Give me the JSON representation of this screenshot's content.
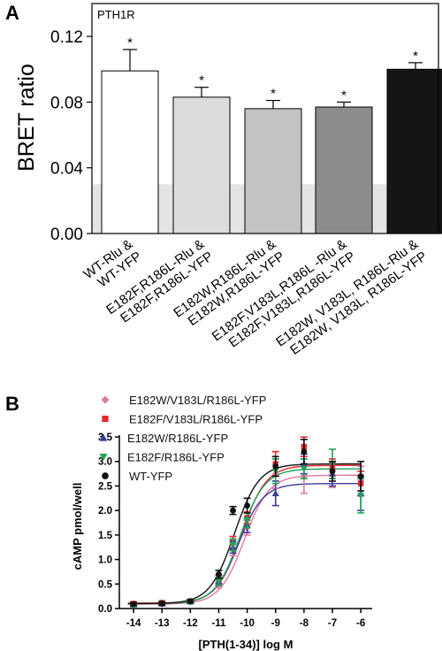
{
  "chart_data": [
    {
      "type": "bar",
      "panel_label": "A",
      "inset_label": "PTH1R",
      "ylabel": "BRET ratio",
      "xlabel": "",
      "ylim": [
        0,
        0.14
      ],
      "yticks": [
        "0.00",
        "0.04",
        "0.08",
        "0.12"
      ],
      "ytick_values": [
        0,
        0.04,
        0.08,
        0.12
      ],
      "background_band": [
        0,
        0.03
      ],
      "categories": [
        "WT-Rlu & WT-YFP",
        "E182F,R186L-Rlu & E182F,R186L-YFP",
        "E182W,R186L-Rlu & E182W,R186L-YFP",
        "E182F,V183L,R186L -Rlu & E182F,V183L,R186L-YFP",
        "E182W, V183L, R186L-Rlu & E182W, V183L, R186L-YFP"
      ],
      "tick_labels": [
        [
          "WT-Rlu &",
          "WT-YFP"
        ],
        [
          "E182F,R186L-Rlu &",
          "E182F,R186L-YFP"
        ],
        [
          "E182W,R186L-Rlu &",
          "E182W,R186L-YFP"
        ],
        [
          "E182F,V183L,R186L -Rlu &",
          "E182F,V183L,R186L-YFP"
        ],
        [
          "E182W, V183L, R186L-Rlu &",
          "E182W, V183L, R186L-YFP"
        ]
      ],
      "values": [
        0.099,
        0.083,
        0.076,
        0.077,
        0.1
      ],
      "errors": [
        0.013,
        0.006,
        0.005,
        0.003,
        0.004
      ],
      "significance": [
        "*",
        "*",
        "*",
        "*",
        "*"
      ],
      "colors": [
        "#ffffff",
        "#dcdcdc",
        "#c3c3c3",
        "#8c8c8c",
        "#151515"
      ],
      "grid": false
    },
    {
      "type": "scatter",
      "panel_label": "B",
      "xlabel": "[PTH(1-34)] log M",
      "ylabel": "cAMP pmol/well",
      "xlim": [
        -14.5,
        -5.6
      ],
      "ylim": [
        0,
        3.5
      ],
      "xticks": [
        "-14",
        "-13",
        "-12",
        "-11",
        "-10",
        "-9",
        "-8",
        "-7",
        "-6"
      ],
      "xtick_values": [
        -14,
        -13,
        -12,
        -11,
        -10,
        -9,
        -8,
        -7,
        -6
      ],
      "yticks": [
        "0.0",
        "0.5",
        "1.0",
        "1.5",
        "2.0",
        "2.5",
        "3.0",
        "3.5"
      ],
      "ytick_values": [
        0,
        0.5,
        1.0,
        1.5,
        2.0,
        2.5,
        3.0,
        3.5
      ],
      "legend_position": "top-left",
      "grid": false,
      "x": [
        -14,
        -13,
        -12,
        -11,
        -10.5,
        -10,
        -9,
        -8,
        -7,
        -6
      ],
      "series": [
        {
          "name": "E182W/V183L/R186L-YFP",
          "marker": "diamond",
          "color": "#e07aa0",
          "values": [
            0.08,
            0.1,
            0.14,
            0.5,
            1.2,
            1.65,
            2.75,
            2.7,
            2.72,
            2.6
          ],
          "errors": [
            0.03,
            0.03,
            0.03,
            0.08,
            0.12,
            0.15,
            0.3,
            0.35,
            0.25,
            0.3
          ]
        },
        {
          "name": "E182F/V183L/R186L-YFP",
          "marker": "square",
          "color": "#e8262c",
          "values": [
            0.1,
            0.12,
            0.15,
            0.6,
            1.35,
            1.85,
            2.95,
            3.3,
            2.85,
            2.55
          ],
          "errors": [
            0.03,
            0.03,
            0.03,
            0.08,
            0.12,
            0.12,
            0.25,
            0.2,
            0.2,
            0.25
          ]
        },
        {
          "name": "E182W/R186L-YFP",
          "marker": "triangle-up",
          "color": "#3a3d9c",
          "values": [
            0.08,
            0.1,
            0.14,
            0.55,
            1.25,
            1.7,
            2.35,
            2.95,
            2.75,
            2.35
          ],
          "errors": [
            0.03,
            0.03,
            0.03,
            0.08,
            0.12,
            0.15,
            0.25,
            0.2,
            0.25,
            0.35
          ]
        },
        {
          "name": "E182F/R186L-YFP",
          "marker": "triangle-down",
          "color": "#1ea35a",
          "values": [
            0.07,
            0.1,
            0.13,
            0.55,
            1.3,
            1.8,
            2.8,
            2.85,
            2.95,
            2.3
          ],
          "errors": [
            0.03,
            0.03,
            0.03,
            0.08,
            0.12,
            0.15,
            0.25,
            0.2,
            0.3,
            0.35
          ]
        },
        {
          "name": "WT-YFP",
          "marker": "circle",
          "color": "#111111",
          "values": [
            0.09,
            0.1,
            0.15,
            0.7,
            2.0,
            2.1,
            2.9,
            3.2,
            2.8,
            2.7
          ],
          "errors": [
            0.03,
            0.03,
            0.03,
            0.08,
            0.08,
            0.15,
            0.2,
            0.25,
            0.2,
            0.3
          ]
        }
      ],
      "fits": [
        {
          "name": "E182W/V183L/R186L-YFP",
          "color": "#e07aa0",
          "bottom": 0.09,
          "top": 2.72,
          "logEC50": -10.1
        },
        {
          "name": "E182F/V183L/R186L-YFP",
          "color": "#e8262c",
          "bottom": 0.11,
          "top": 2.92,
          "logEC50": -10.2
        },
        {
          "name": "E182W/R186L-YFP",
          "color": "#3a3d9c",
          "bottom": 0.1,
          "top": 2.55,
          "logEC50": -10.3
        },
        {
          "name": "E182F/R186L-YFP",
          "color": "#1ea35a",
          "bottom": 0.1,
          "top": 2.85,
          "logEC50": -10.25
        },
        {
          "name": "WT-YFP",
          "color": "#111111",
          "bottom": 0.1,
          "top": 2.95,
          "logEC50": -10.45
        }
      ]
    }
  ]
}
